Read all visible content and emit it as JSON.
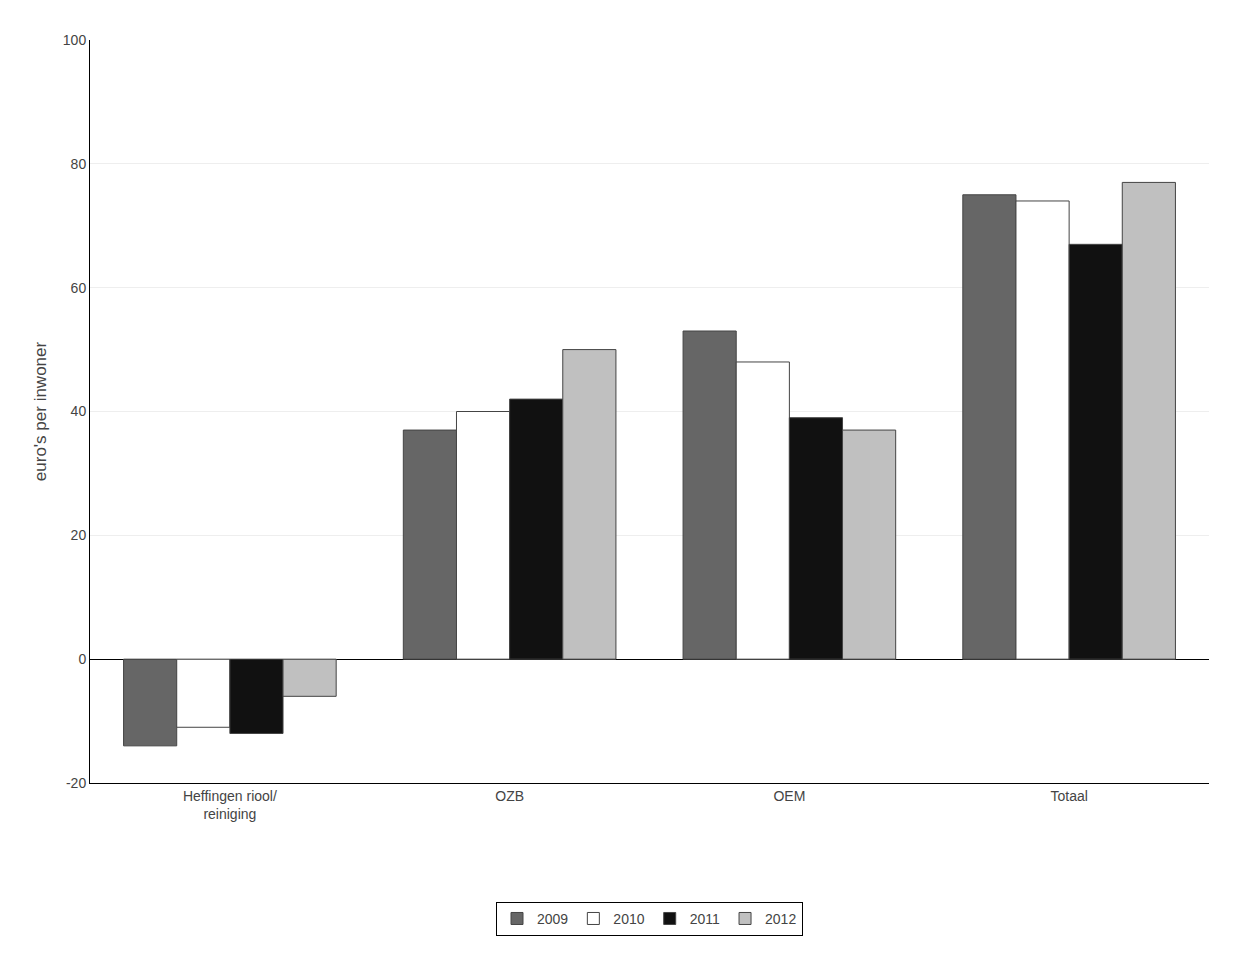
{
  "chart_data": {
    "type": "bar",
    "categories": [
      "Heffingen riool/\nreiniging",
      "OZB",
      "OEM",
      "Totaal"
    ],
    "series": [
      {
        "name": "2009",
        "color": "#666666",
        "values": [
          -14,
          37,
          53,
          75
        ]
      },
      {
        "name": "2010",
        "color": "#ffffff",
        "values": [
          -11,
          40,
          48,
          74
        ]
      },
      {
        "name": "2011",
        "color": "#111111",
        "values": [
          -12,
          42,
          39,
          67
        ]
      },
      {
        "name": "2012",
        "color": "#c0c0c0",
        "values": [
          -6,
          50,
          37,
          77
        ]
      }
    ],
    "ylabel": "euro's per inwoner",
    "ylim": [
      -20,
      100
    ],
    "yticks": [
      -20,
      0,
      20,
      40,
      60,
      80,
      100
    ],
    "grid": true,
    "legend": "bottom"
  }
}
